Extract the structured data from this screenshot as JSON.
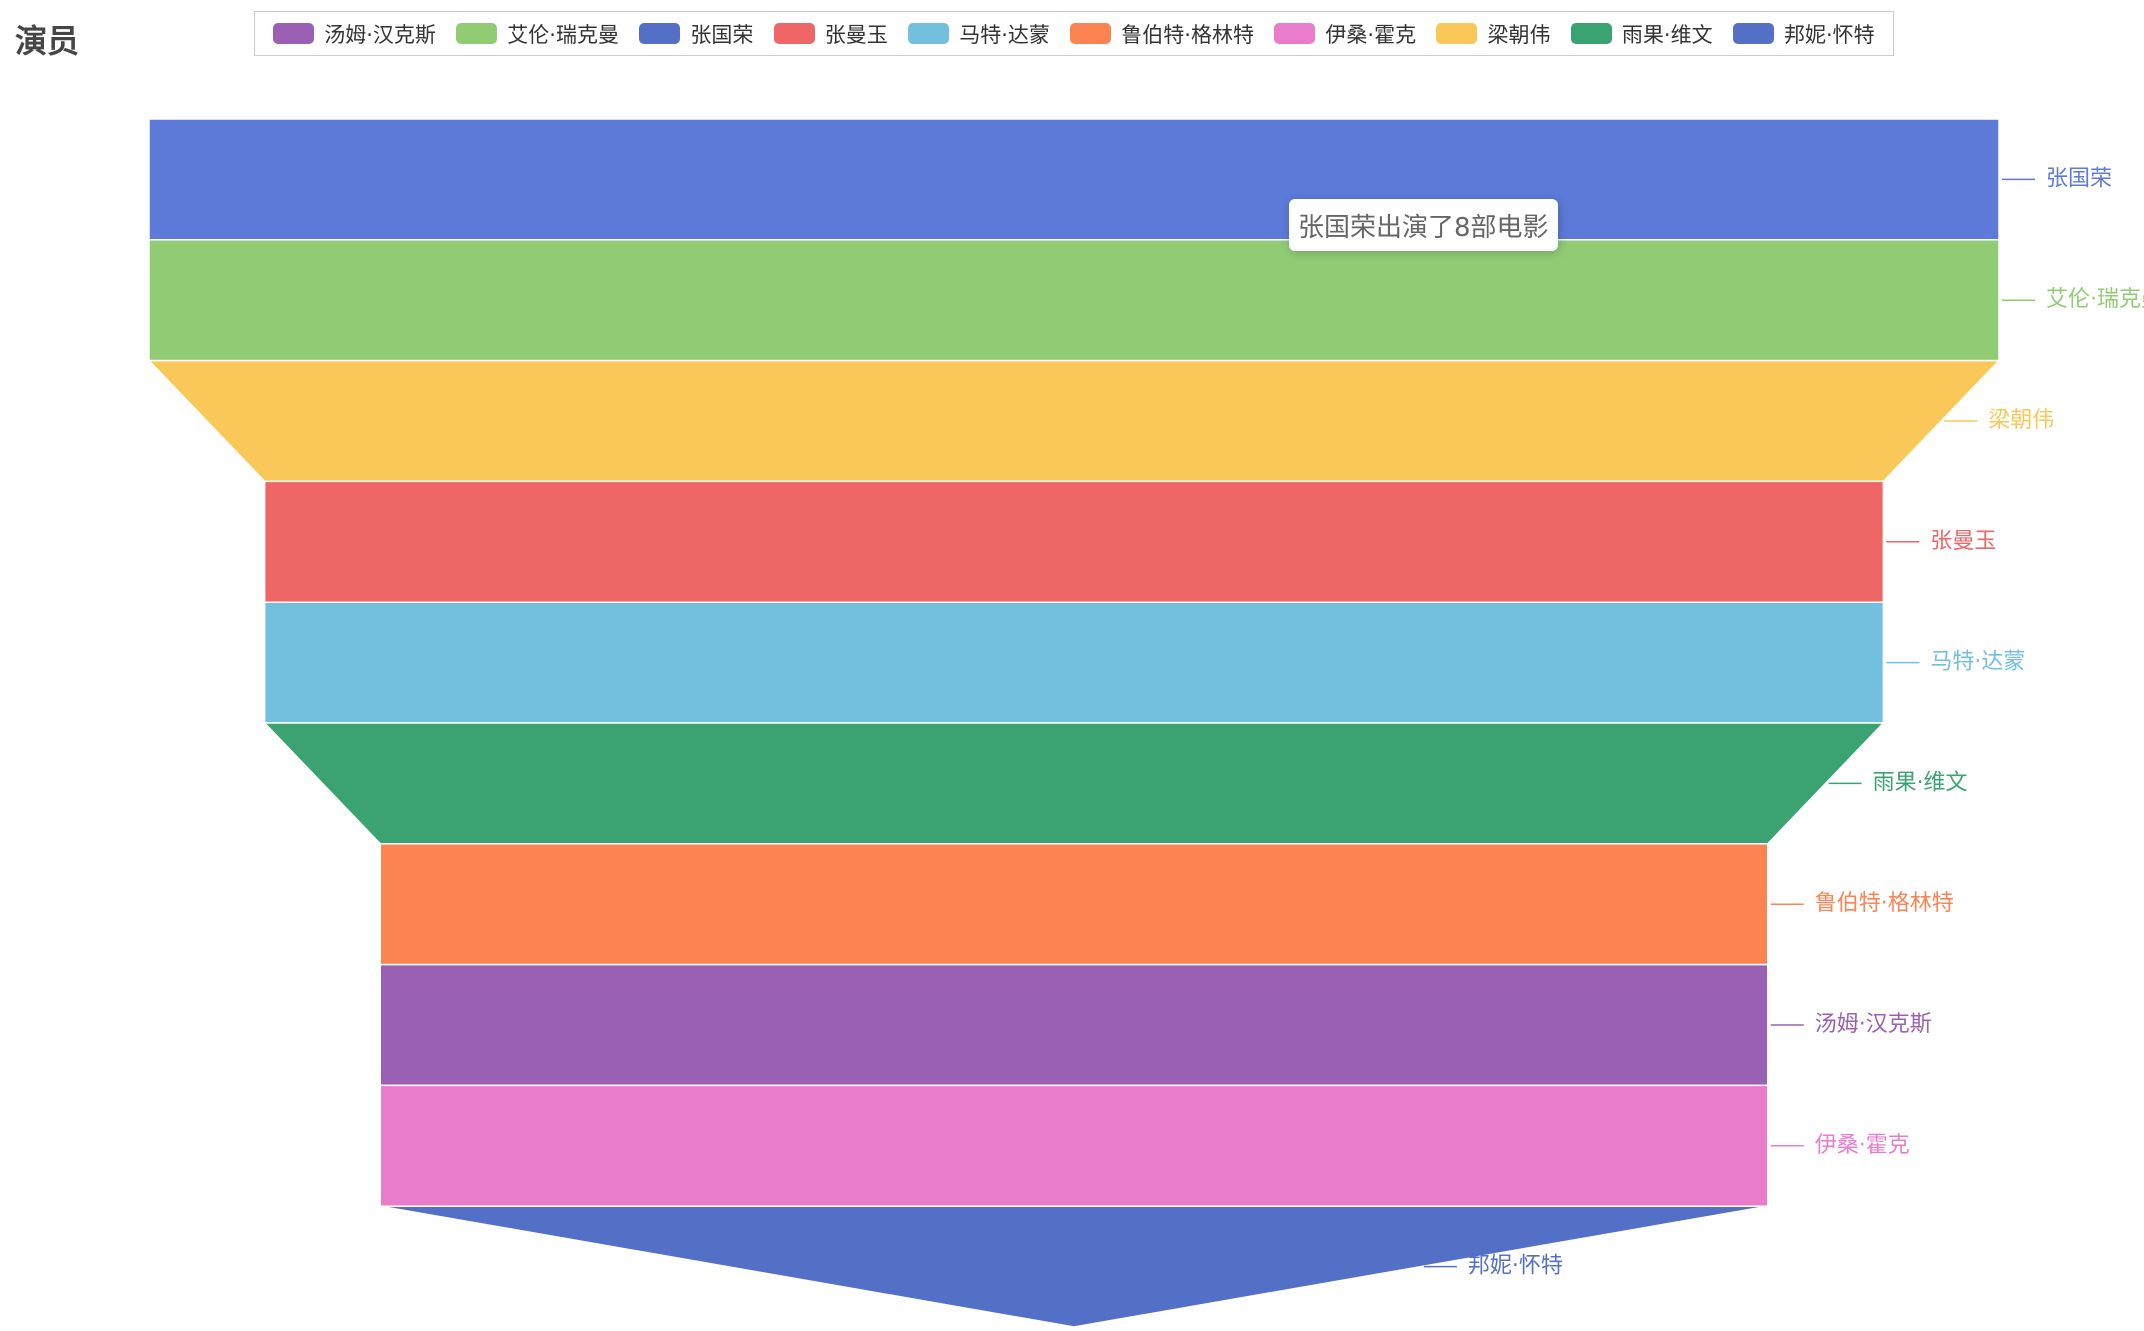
{
  "chart_data": {
    "type": "funnel",
    "title": "演员",
    "legend": [
      {
        "name": "汤姆·汉克斯",
        "color": "#9a60b4"
      },
      {
        "name": "艾伦·瑞克曼",
        "color": "#91cc75"
      },
      {
        "name": "张国荣",
        "color": "#5470c6"
      },
      {
        "name": "张曼玉",
        "color": "#ee6666"
      },
      {
        "name": "马特·达蒙",
        "color": "#73c0de"
      },
      {
        "name": "鲁伯特·格林特",
        "color": "#fc8452"
      },
      {
        "name": "伊桑·霍克",
        "color": "#ea7ccc"
      },
      {
        "name": "梁朝伟",
        "color": "#fac858"
      },
      {
        "name": "雨果·维文",
        "color": "#3ba272"
      },
      {
        "name": "邦妮·怀特",
        "color": "#5470c6"
      }
    ],
    "categories": [
      "张国荣",
      "艾伦·瑞克曼",
      "梁朝伟",
      "张曼玉",
      "马特·达蒙",
      "雨果·维文",
      "鲁伯特·格林特",
      "汤姆·汉克斯",
      "伊桑·霍克",
      "邦妮·怀特"
    ],
    "values": [
      8,
      8,
      8,
      7,
      7,
      7,
      6,
      6,
      6,
      6
    ],
    "colors": [
      "#5d7ad8",
      "#91cc75",
      "#fac858",
      "#ee6666",
      "#73c0de",
      "#3ba272",
      "#fc8452",
      "#9a60b4",
      "#ea7ccc",
      "#5470c6"
    ],
    "tooltip": "张国荣出演了8部电影"
  }
}
